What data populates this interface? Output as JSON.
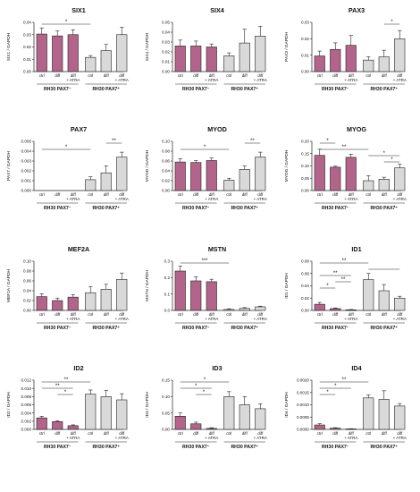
{
  "chart_data": [
    {
      "type": "bar",
      "title": "SIX1",
      "ylabel": "SIX1 / GAPDH",
      "ylim": [
        0,
        0.04
      ],
      "yticks": [
        "0.00",
        "0.01",
        "0.02",
        "0.03",
        "0.04"
      ],
      "categories": [
        "ctrl",
        "diff",
        "diff\n+ ATRA",
        "ctrl",
        "diff",
        "diff\n+ ATRA"
      ],
      "groups": [
        "RH30 PAX7⁻",
        "RH30 PAX7⁺"
      ],
      "values": [
        0.0305,
        0.029,
        0.03,
        0.0115,
        0.017,
        0.03
      ],
      "errors": [
        0.005,
        0.004,
        0.004,
        0.0015,
        0.005,
        0.006
      ],
      "significance": [
        {
          "from": 0,
          "to": 3,
          "label": "*"
        }
      ]
    },
    {
      "type": "bar",
      "title": "SIX4",
      "ylabel": "SIX4 / GAPDH",
      "ylim": [
        0,
        0.05
      ],
      "yticks": [
        "0.00",
        "0.01",
        "0.02",
        "0.03",
        "0.04",
        "0.05"
      ],
      "categories": [
        "ctrl",
        "diff",
        "diff\n+ ATRA",
        "ctrl",
        "diff",
        "diff\n+ ATRA"
      ],
      "groups": [
        "RH30 PAX7⁻",
        "RH30 PAX7⁺"
      ],
      "values": [
        0.026,
        0.026,
        0.025,
        0.016,
        0.029,
        0.036
      ],
      "errors": [
        0.006,
        0.005,
        0.003,
        0.003,
        0.014,
        0.01
      ],
      "significance": []
    },
    {
      "type": "bar",
      "title": "PAX3",
      "ylabel": "PAX3 / GAPDH",
      "ylim": [
        0,
        0.03
      ],
      "yticks": [
        "0.00",
        "0.01",
        "0.02",
        "0.03"
      ],
      "categories": [
        "ctrl",
        "diff",
        "diff\n+ ATRA",
        "ctrl",
        "diff",
        "diff\n+ ATRA"
      ],
      "groups": [
        "RH30 PAX7⁻",
        "RH30 PAX7⁺"
      ],
      "values": [
        0.0095,
        0.0135,
        0.016,
        0.007,
        0.009,
        0.02
      ],
      "errors": [
        0.003,
        0.004,
        0.006,
        0.002,
        0.004,
        0.005
      ],
      "significance": [
        {
          "from": 4,
          "to": 5,
          "label": "*"
        }
      ]
    },
    {
      "type": "bar",
      "title": "PAX7",
      "ylabel": "PAX7 / GAPDH",
      "ylim": [
        0,
        0.005
      ],
      "yticks": [
        "0.000",
        "0.001",
        "0.002",
        "0.003",
        "0.004",
        "0.005"
      ],
      "categories": [
        "ctrl",
        "diff",
        "diff\n+ ATRA",
        "ctrl",
        "diff",
        "diff\n+ ATRA"
      ],
      "groups": [
        "RH30 PAX7⁻",
        "RH30 PAX7⁺"
      ],
      "values": [
        0,
        0,
        0,
        0.0011,
        0.0018,
        0.0034
      ],
      "errors": [
        0,
        0,
        0,
        0.0003,
        0.0007,
        0.0005
      ],
      "significance": [
        {
          "from": 4,
          "to": 5,
          "label": "**"
        },
        {
          "from": 0,
          "to": 3,
          "label": "*"
        }
      ]
    },
    {
      "type": "bar",
      "title": "MYOD",
      "ylabel": "MYOD / GAPDH",
      "ylim": [
        0,
        0.1
      ],
      "yticks": [
        "0.00",
        "0.02",
        "0.04",
        "0.06",
        "0.08",
        "0.10"
      ],
      "categories": [
        "ctrl",
        "diff",
        "diff\n+ ATRA",
        "ctrl",
        "diff",
        "diff\n+ ATRA"
      ],
      "groups": [
        "RH30 PAX7⁻",
        "RH30 PAX7⁺"
      ],
      "values": [
        0.058,
        0.057,
        0.061,
        0.021,
        0.043,
        0.068
      ],
      "errors": [
        0.007,
        0.004,
        0.005,
        0.004,
        0.007,
        0.01
      ],
      "significance": [
        {
          "from": 4,
          "to": 5,
          "label": "**"
        },
        {
          "from": 0,
          "to": 3,
          "label": "*"
        }
      ]
    },
    {
      "type": "bar",
      "title": "MYOG",
      "ylabel": "MYOG / GAPDH",
      "ylim": [
        0,
        0.2
      ],
      "yticks": [
        "0.00",
        "0.05",
        "0.10",
        "0.15",
        "0.20"
      ],
      "categories": [
        "ctrl",
        "diff",
        "diff\n+ ATRA",
        "ctrl",
        "diff",
        "diff\n+ ATRA"
      ],
      "groups": [
        "RH30 PAX7⁻",
        "RH30 PAX7⁺"
      ],
      "values": [
        0.143,
        0.095,
        0.135,
        0.04,
        0.046,
        0.092
      ],
      "errors": [
        0.025,
        0.004,
        0.013,
        0.02,
        0.008,
        0.015
      ],
      "significance": [
        {
          "from": 0,
          "to": 1,
          "label": "*"
        },
        {
          "from": 0,
          "to": 3,
          "label": "**"
        },
        {
          "from": 3,
          "to": 5,
          "label": "*"
        },
        {
          "from": 4,
          "to": 5,
          "label": "*"
        }
      ]
    },
    {
      "type": "bar",
      "title": "MEF2A",
      "ylabel": "MEF2A / GAPDH",
      "ylim": [
        0,
        0.1
      ],
      "yticks": [
        "0.00",
        "0.02",
        "0.04",
        "0.06",
        "0.08",
        "0.10"
      ],
      "categories": [
        "ctrl",
        "diff",
        "diff\n+ ATRA",
        "ctrl",
        "diff",
        "diff\n+ ATRA"
      ],
      "groups": [
        "RH30 PAX7⁻",
        "RH30 PAX7⁺"
      ],
      "values": [
        0.028,
        0.02,
        0.027,
        0.036,
        0.043,
        0.063
      ],
      "errors": [
        0.006,
        0.005,
        0.005,
        0.012,
        0.01,
        0.013
      ],
      "significance": []
    },
    {
      "type": "bar",
      "title": "MSTN",
      "ylabel": "MSTN / GAPDH",
      "ylim": [
        0,
        0.3
      ],
      "yticks": [
        "0.0",
        "0.1",
        "0.2",
        "0.3"
      ],
      "categories": [
        "ctrl",
        "diff",
        "diff\n+ ATRA",
        "ctrl",
        "diff",
        "diff\n+ ATRA"
      ],
      "groups": [
        "RH30 PAX7⁻",
        "RH30 PAX7⁺"
      ],
      "values": [
        0.24,
        0.18,
        0.175,
        0.006,
        0.012,
        0.022
      ],
      "errors": [
        0.03,
        0.025,
        0.015,
        0.004,
        0.005,
        0.004
      ],
      "significance": [
        {
          "from": 0,
          "to": 3,
          "label": "***"
        }
      ]
    },
    {
      "type": "bar",
      "title": "ID1",
      "ylabel": "ID1 / GAPDH",
      "ylim": [
        0,
        0.08
      ],
      "yticks": [
        "0.00",
        "0.02",
        "0.04",
        "0.06",
        "0.08"
      ],
      "categories": [
        "ctrl",
        "diff",
        "diff\n+ ATRA",
        "ctrl",
        "diff",
        "diff\n+ ATRA"
      ],
      "groups": [
        "RH30 PAX7⁻",
        "RH30 PAX7⁺"
      ],
      "values": [
        0.01,
        0.003,
        0.001,
        0.05,
        0.032,
        0.02
      ],
      "errors": [
        0.003,
        0.001,
        0.0005,
        0.01,
        0.01,
        0.003
      ],
      "significance": [
        {
          "from": 0,
          "to": 3,
          "label": "**"
        },
        {
          "from": 3,
          "to": 5,
          "label": ""
        },
        {
          "from": 0,
          "to": 2,
          "label": "**"
        },
        {
          "from": 1,
          "to": 2,
          "label": "**"
        },
        {
          "from": 0,
          "to": 1,
          "label": "*"
        }
      ]
    },
    {
      "type": "bar",
      "title": "ID2",
      "ylabel": "ID2 / GAPDH",
      "ylim": [
        0,
        0.012
      ],
      "yticks": [
        "0.000",
        "0.002",
        "0.004",
        "0.006",
        "0.008",
        "0.010",
        "0.012"
      ],
      "categories": [
        "ctrl",
        "diff",
        "diff\n+ ATRA",
        "ctrl",
        "diff",
        "diff\n+ ATRA"
      ],
      "groups": [
        "RH30 PAX7⁻",
        "RH30 PAX7⁺"
      ],
      "values": [
        0.0028,
        0.0019,
        0.0009,
        0.0086,
        0.008,
        0.0072
      ],
      "errors": [
        0.0004,
        0.0002,
        0.0002,
        0.001,
        0.0015,
        0.0015
      ],
      "significance": [
        {
          "from": 0,
          "to": 3,
          "label": "**"
        },
        {
          "from": 0,
          "to": 2,
          "label": "**"
        },
        {
          "from": 1,
          "to": 2,
          "label": "*"
        }
      ]
    },
    {
      "type": "bar",
      "title": "ID3",
      "ylabel": "ID3 / GAPDH",
      "ylim": [
        0,
        0.15
      ],
      "yticks": [
        "0.00",
        "0.05",
        "0.10",
        "0.15"
      ],
      "categories": [
        "ctrl",
        "diff",
        "diff\n+ ATRA",
        "ctrl",
        "diff",
        "diff\n+ ATRA"
      ],
      "groups": [
        "RH30 PAX7⁻",
        "RH30 PAX7⁺"
      ],
      "values": [
        0.04,
        0.017,
        0.003,
        0.1,
        0.075,
        0.063
      ],
      "errors": [
        0.01,
        0.005,
        0.002,
        0.015,
        0.025,
        0.015
      ],
      "significance": [
        {
          "from": 0,
          "to": 3,
          "label": "*"
        },
        {
          "from": 0,
          "to": 2,
          "label": "*"
        },
        {
          "from": 1,
          "to": 2,
          "label": "*"
        }
      ]
    },
    {
      "type": "bar",
      "title": "ID4",
      "ylabel": "ID4 / GAPDH",
      "ylim": [
        0,
        0.002
      ],
      "yticks": [
        "0.0000",
        "0.0005",
        "0.0010",
        "0.0015",
        "0.0020"
      ],
      "categories": [
        "ctrl",
        "diff",
        "diff\n+ ATRA",
        "ctrl",
        "diff",
        "diff\n+ ATRA"
      ],
      "groups": [
        "RH30 PAX7⁻",
        "RH30 PAX7⁺"
      ],
      "values": [
        0.00018,
        5e-05,
        2e-05,
        0.00128,
        0.00122,
        0.00095
      ],
      "errors": [
        5e-05,
        2e-05,
        1e-05,
        0.00012,
        0.00035,
        0.0001
      ],
      "significance": [
        {
          "from": 0,
          "to": 3,
          "label": "**"
        },
        {
          "from": 0,
          "to": 2,
          "label": "*"
        },
        {
          "from": 0,
          "to": 1,
          "label": "*"
        }
      ]
    }
  ],
  "colors": {
    "pax7_negative": "#b3648b",
    "pax7_positive": "#d9d9d9",
    "stroke": "#222222"
  }
}
